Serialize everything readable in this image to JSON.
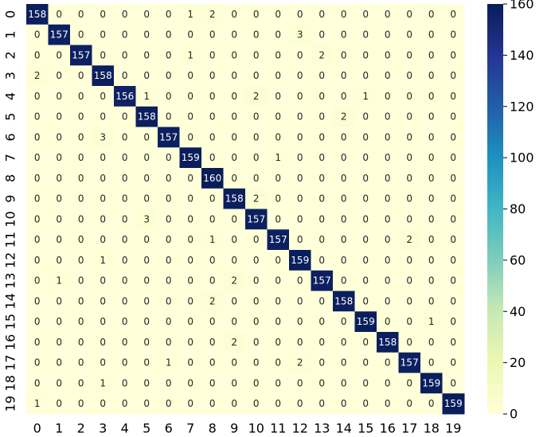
{
  "chart_data": {
    "type": "heatmap",
    "x_labels": [
      0,
      1,
      2,
      3,
      4,
      5,
      6,
      7,
      8,
      9,
      10,
      11,
      12,
      13,
      14,
      15,
      16,
      17,
      18,
      19
    ],
    "y_labels": [
      0,
      1,
      2,
      3,
      4,
      5,
      6,
      7,
      8,
      9,
      10,
      11,
      12,
      13,
      14,
      15,
      16,
      17,
      18,
      19
    ],
    "values": [
      [
        158,
        0,
        0,
        0,
        0,
        0,
        0,
        1,
        2,
        0,
        0,
        0,
        0,
        0,
        0,
        0,
        0,
        0,
        0,
        0
      ],
      [
        0,
        157,
        0,
        0,
        0,
        0,
        0,
        0,
        0,
        0,
        0,
        0,
        3,
        0,
        0,
        0,
        0,
        0,
        0,
        0
      ],
      [
        0,
        0,
        157,
        0,
        0,
        0,
        0,
        1,
        0,
        0,
        0,
        0,
        0,
        2,
        0,
        0,
        0,
        0,
        0,
        0
      ],
      [
        2,
        0,
        0,
        158,
        0,
        0,
        0,
        0,
        0,
        0,
        0,
        0,
        0,
        0,
        0,
        0,
        0,
        0,
        0,
        0
      ],
      [
        0,
        0,
        0,
        0,
        156,
        1,
        0,
        0,
        0,
        0,
        2,
        0,
        0,
        0,
        0,
        1,
        0,
        0,
        0,
        0
      ],
      [
        0,
        0,
        0,
        0,
        0,
        158,
        0,
        0,
        0,
        0,
        0,
        0,
        0,
        0,
        2,
        0,
        0,
        0,
        0,
        0
      ],
      [
        0,
        0,
        0,
        3,
        0,
        0,
        157,
        0,
        0,
        0,
        0,
        0,
        0,
        0,
        0,
        0,
        0,
        0,
        0,
        0
      ],
      [
        0,
        0,
        0,
        0,
        0,
        0,
        0,
        159,
        0,
        0,
        0,
        1,
        0,
        0,
        0,
        0,
        0,
        0,
        0,
        0
      ],
      [
        0,
        0,
        0,
        0,
        0,
        0,
        0,
        0,
        160,
        0,
        0,
        0,
        0,
        0,
        0,
        0,
        0,
        0,
        0,
        0
      ],
      [
        0,
        0,
        0,
        0,
        0,
        0,
        0,
        0,
        0,
        158,
        2,
        0,
        0,
        0,
        0,
        0,
        0,
        0,
        0,
        0
      ],
      [
        0,
        0,
        0,
        0,
        0,
        3,
        0,
        0,
        0,
        0,
        157,
        0,
        0,
        0,
        0,
        0,
        0,
        0,
        0,
        0
      ],
      [
        0,
        0,
        0,
        0,
        0,
        0,
        0,
        0,
        1,
        0,
        0,
        157,
        0,
        0,
        0,
        0,
        0,
        2,
        0,
        0
      ],
      [
        0,
        0,
        0,
        1,
        0,
        0,
        0,
        0,
        0,
        0,
        0,
        0,
        159,
        0,
        0,
        0,
        0,
        0,
        0,
        0
      ],
      [
        0,
        1,
        0,
        0,
        0,
        0,
        0,
        0,
        0,
        2,
        0,
        0,
        0,
        157,
        0,
        0,
        0,
        0,
        0,
        0
      ],
      [
        0,
        0,
        0,
        0,
        0,
        0,
        0,
        0,
        2,
        0,
        0,
        0,
        0,
        0,
        158,
        0,
        0,
        0,
        0,
        0
      ],
      [
        0,
        0,
        0,
        0,
        0,
        0,
        0,
        0,
        0,
        0,
        0,
        0,
        0,
        0,
        0,
        159,
        0,
        0,
        1,
        0
      ],
      [
        0,
        0,
        0,
        0,
        0,
        0,
        0,
        0,
        0,
        2,
        0,
        0,
        0,
        0,
        0,
        0,
        158,
        0,
        0,
        0
      ],
      [
        0,
        0,
        0,
        0,
        0,
        0,
        1,
        0,
        0,
        0,
        0,
        0,
        2,
        0,
        0,
        0,
        0,
        157,
        0,
        0
      ],
      [
        0,
        0,
        0,
        1,
        0,
        0,
        0,
        0,
        0,
        0,
        0,
        0,
        0,
        0,
        0,
        0,
        0,
        0,
        159,
        0
      ],
      [
        1,
        0,
        0,
        0,
        0,
        0,
        0,
        0,
        0,
        0,
        0,
        0,
        0,
        0,
        0,
        0,
        0,
        0,
        0,
        159
      ]
    ],
    "zlim": [
      0,
      160
    ],
    "zticks": [
      0,
      20,
      40,
      60,
      80,
      100,
      120,
      140,
      160
    ],
    "colormap": "YlGnBu"
  }
}
